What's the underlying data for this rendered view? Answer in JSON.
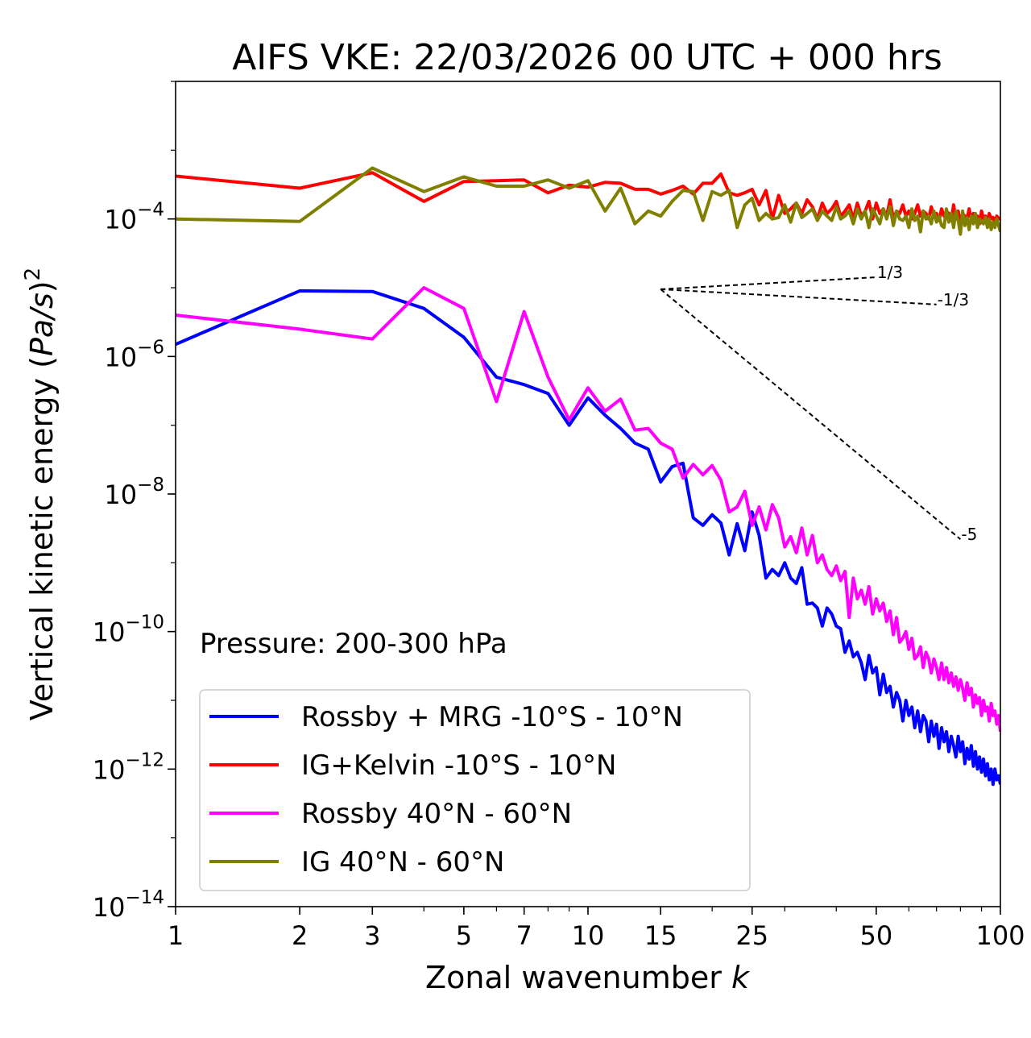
{
  "chart_data": {
    "type": "line",
    "title": "AIFS VKE: 22/03/2026 00 UTC + 000 hrs",
    "xlabel": "Zonal wavenumber k",
    "xlabel_text": "Zonal wavenumber",
    "xlabel_var": "k",
    "ylabel": "Vertical kinetic energy (Pa/s)^2",
    "ylabel_text": "Vertical kinetic energy (",
    "ylabel_var": "Pa/s",
    "ylabel_close": ")",
    "ylabel_exp": "2",
    "xscale": "log",
    "yscale": "log",
    "xlim": [
      1,
      100
    ],
    "ylim": [
      1e-14,
      0.01
    ],
    "xticks": [
      1,
      2,
      3,
      5,
      7,
      10,
      15,
      25,
      50,
      100
    ],
    "xtick_labels": [
      "1",
      "2",
      "3",
      "5",
      "7",
      "10",
      "15",
      "25",
      "50",
      "100"
    ],
    "yticks": [
      1e-14,
      1e-12,
      1e-10,
      1e-08,
      1e-06,
      0.0001
    ],
    "ytick_base": "10",
    "ytick_exps": [
      "−14",
      "−12",
      "−10",
      "−8",
      "−6",
      "−4"
    ],
    "annotation": "Pressure: 200-300 hPa",
    "legend_position": "lower-left",
    "series": [
      {
        "name": "Rossby + MRG -10°S - 10°N",
        "color": "#0000ff",
        "x": [
          1,
          2,
          3,
          4,
          5,
          6,
          7,
          8,
          9,
          10,
          11,
          12,
          13,
          14,
          15,
          16,
          17,
          18,
          19,
          20,
          21,
          22,
          23,
          24,
          25,
          26,
          27,
          28,
          29,
          30,
          31,
          32,
          33,
          34,
          35,
          36,
          37,
          38,
          39,
          40,
          41,
          42,
          43,
          44,
          45,
          46,
          47,
          48,
          49,
          50,
          51,
          52,
          53,
          54,
          55,
          56,
          57,
          58,
          59,
          60,
          61,
          62,
          63,
          64,
          65,
          66,
          67,
          68,
          69,
          70,
          71,
          72,
          73,
          74,
          75,
          76,
          77,
          78,
          79,
          80,
          81,
          82,
          83,
          84,
          85,
          86,
          87,
          88,
          89,
          90,
          91,
          92,
          93,
          94,
          95,
          96,
          97,
          98,
          99,
          100
        ],
        "y": [
          1.5e-06,
          9e-06,
          8.8e-06,
          5e-06,
          1.9e-06,
          5e-07,
          3.9e-07,
          2.9e-07,
          1e-07,
          2.5e-07,
          1.4e-07,
          9e-08,
          5.5e-08,
          4.5e-08,
          1.5e-08,
          2.5e-08,
          2.8e-08,
          4.5e-09,
          3.5e-09,
          5e-09,
          3.8e-09,
          1.3e-09,
          3.7e-09,
          1.5e-09,
          5.5e-09,
          2.5e-09,
          6e-10,
          8e-10,
          6.5e-10,
          1e-09,
          6e-10,
          5e-10,
          8.5e-10,
          2.5e-10,
          2.6e-10,
          2.2e-10,
          1.2e-10,
          2.2e-10,
          1.8e-10,
          1.2e-10,
          1.1e-10,
          5e-11,
          7.3e-11,
          4.3e-11,
          5e-11,
          3.5e-11,
          2e-11,
          4.5e-11,
          2.5e-11,
          3e-11,
          1.2e-11,
          2.4e-11,
          1.3e-11,
          1.6e-11,
          8e-12,
          1.3e-11,
          1e-11,
          5e-12,
          1e-11,
          6e-12,
          8e-12,
          4e-12,
          7e-12,
          3.5e-12,
          6e-12,
          5e-12,
          2.5e-12,
          5e-12,
          3e-12,
          4.5e-12,
          2e-12,
          4e-12,
          2.5e-12,
          3.5e-12,
          1.8e-12,
          3e-12,
          2.2e-12,
          1.5e-12,
          3e-12,
          1.8e-12,
          2.5e-12,
          1.2e-12,
          2e-12,
          1.4e-12,
          2.2e-12,
          1.1e-12,
          1.8e-12,
          1e-12,
          1.5e-12,
          9e-13,
          1.4e-12,
          8e-13,
          1.2e-12,
          7e-13,
          1e-12,
          6e-13,
          1e-12,
          7e-13,
          8e-13,
          6e-13
        ]
      },
      {
        "name": "IG+Kelvin -10°S - 10°N",
        "color": "#ff0000",
        "x": [
          1,
          2,
          3,
          4,
          5,
          6,
          7,
          8,
          9,
          10,
          11,
          12,
          13,
          14,
          15,
          16,
          17,
          18,
          19,
          20,
          21,
          22,
          23,
          24,
          25,
          26,
          27,
          28,
          29,
          30,
          31,
          32,
          33,
          34,
          35,
          36,
          37,
          38,
          39,
          40,
          41,
          42,
          43,
          44,
          45,
          46,
          47,
          48,
          49,
          50,
          51,
          52,
          53,
          54,
          55,
          56,
          57,
          58,
          59,
          60,
          61,
          62,
          63,
          64,
          65,
          66,
          67,
          68,
          69,
          70,
          71,
          72,
          73,
          74,
          75,
          76,
          77,
          78,
          79,
          80,
          81,
          82,
          83,
          84,
          85,
          86,
          87,
          88,
          89,
          90,
          91,
          92,
          93,
          94,
          95,
          96,
          97,
          98,
          99,
          100
        ],
        "y": [
          0.00042,
          0.00028,
          0.00047,
          0.00018,
          0.00035,
          0.00036,
          0.00037,
          0.00024,
          0.00031,
          0.00029,
          0.00034,
          0.00033,
          0.00027,
          0.00027,
          0.00023,
          0.00026,
          0.0003,
          0.00023,
          0.00033,
          0.00033,
          0.00045,
          0.00024,
          0.00022,
          0.00024,
          0.00027,
          0.00016,
          0.00026,
          0.0001,
          0.00022,
          0.00012,
          0.00014,
          0.00017,
          0.00012,
          0.00019,
          0.00015,
          0.0001,
          0.00017,
          0.00012,
          0.00014,
          0.00018,
          0.00011,
          0.00013,
          0.00016,
          0.0001,
          0.00017,
          0.00011,
          0.00013,
          0.00018,
          0.0001,
          0.00017,
          0.00012,
          0.00014,
          0.00011,
          0.00019,
          0.0001,
          0.00013,
          0.00012,
          0.00016,
          0.00011,
          0.00013,
          0.0001,
          0.00012,
          0.00016,
          0.00011,
          0.00013,
          0.00012,
          0.0001,
          0.00015,
          0.00011,
          0.00012,
          9.5e-05,
          0.00014,
          0.00011,
          0.00013,
          0.00012,
          9.5e-05,
          0.00016,
          0.0001,
          0.00013,
          8.5e-05,
          0.00012,
          0.00011,
          0.0001,
          0.00014,
          9.5e-05,
          0.00012,
          0.0001,
          0.00011,
          8.5e-05,
          0.00013,
          0.0001,
          0.00011,
          9e-05,
          0.00012,
          0.0001,
          0.000105,
          9e-05,
          0.00011,
          0.0001,
          0.000105
        ]
      },
      {
        "name": "Rossby 40°N - 60°N",
        "color": "#ff00ff",
        "x": [
          1,
          2,
          3,
          4,
          5,
          6,
          7,
          8,
          9,
          10,
          11,
          12,
          13,
          14,
          15,
          16,
          17,
          18,
          19,
          20,
          21,
          22,
          23,
          24,
          25,
          26,
          27,
          28,
          29,
          30,
          31,
          32,
          33,
          34,
          35,
          36,
          37,
          38,
          39,
          40,
          41,
          42,
          43,
          44,
          45,
          46,
          47,
          48,
          49,
          50,
          51,
          52,
          53,
          54,
          55,
          56,
          57,
          58,
          59,
          60,
          61,
          62,
          63,
          64,
          65,
          66,
          67,
          68,
          69,
          70,
          71,
          72,
          73,
          74,
          75,
          76,
          77,
          78,
          79,
          80,
          81,
          82,
          83,
          84,
          85,
          86,
          87,
          88,
          89,
          90,
          91,
          92,
          93,
          94,
          95,
          96,
          97,
          98,
          99,
          100
        ],
        "y": [
          4e-06,
          2.5e-06,
          1.8e-06,
          1e-05,
          5e-06,
          2.2e-07,
          4.5e-06,
          5e-07,
          1.2e-07,
          3.5e-07,
          1.6e-07,
          2.4e-07,
          8.5e-08,
          9e-08,
          5.5e-08,
          4.5e-08,
          1.7e-08,
          2.7e-08,
          1.9e-08,
          2.6e-08,
          1.6e-08,
          5.5e-09,
          6.5e-09,
          1.1e-08,
          3.5e-09,
          6.5e-09,
          3e-09,
          7e-09,
          4.5e-09,
          1.7e-09,
          2.4e-09,
          1.4e-09,
          3.2e-09,
          1.3e-09,
          2.5e-09,
          1e-09,
          1.3e-09,
          8e-10,
          6.5e-10,
          9e-10,
          5.5e-10,
          7.5e-10,
          1.6e-10,
          6e-10,
          3e-10,
          4e-10,
          2.5e-10,
          4.5e-10,
          1.8e-10,
          3e-10,
          2e-10,
          2.6e-10,
          1.4e-10,
          2e-10,
          9e-11,
          1.6e-10,
          7e-11,
          8e-11,
          1e-10,
          5.5e-11,
          8e-11,
          4e-11,
          4.5e-11,
          6e-11,
          3e-11,
          5e-11,
          4e-11,
          2.5e-11,
          4e-11,
          3e-11,
          2e-11,
          3.5e-11,
          2e-11,
          3e-11,
          1.8e-11,
          2.5e-11,
          1.6e-11,
          2.2e-11,
          1.4e-11,
          2e-11,
          1.5e-11,
          1e-11,
          1.8e-11,
          1.2e-11,
          1.5e-11,
          8e-12,
          1.2e-11,
          9e-12,
          1.1e-11,
          6e-12,
          1e-11,
          7e-12,
          8e-12,
          5e-12,
          9e-12,
          6e-12,
          7e-12,
          4.5e-12,
          6e-12,
          3.5e-12
        ]
      },
      {
        "name": "IG 40°N - 60°N",
        "color": "#808000",
        "x": [
          1,
          2,
          3,
          4,
          5,
          6,
          7,
          8,
          9,
          10,
          11,
          12,
          13,
          14,
          15,
          16,
          17,
          18,
          19,
          20,
          21,
          22,
          23,
          24,
          25,
          26,
          27,
          28,
          29,
          30,
          31,
          32,
          33,
          34,
          35,
          36,
          37,
          38,
          39,
          40,
          41,
          42,
          43,
          44,
          45,
          46,
          47,
          48,
          49,
          50,
          51,
          52,
          53,
          54,
          55,
          56,
          57,
          58,
          59,
          60,
          61,
          62,
          63,
          64,
          65,
          66,
          67,
          68,
          69,
          70,
          71,
          72,
          73,
          74,
          75,
          76,
          77,
          78,
          79,
          80,
          81,
          82,
          83,
          84,
          85,
          86,
          87,
          88,
          89,
          90,
          91,
          92,
          93,
          94,
          95,
          96,
          97,
          98,
          99,
          100
        ],
        "y": [
          0.0001,
          9.2e-05,
          0.00055,
          0.00025,
          0.00041,
          0.0003,
          0.0003,
          0.00037,
          0.00028,
          0.00036,
          0.00013,
          0.00028,
          8.5e-05,
          0.00013,
          0.00011,
          0.00018,
          0.00026,
          0.00025,
          9.5e-05,
          0.00025,
          0.00022,
          0.00026,
          7.5e-05,
          0.00016,
          0.0002,
          9.5e-05,
          0.00012,
          0.0001,
          0.000105,
          0.00016,
          9e-05,
          0.00017,
          0.000105,
          0.00012,
          0.00014,
          9.5e-05,
          0.00013,
          0.00011,
          9.5e-05,
          0.00015,
          0.0001,
          0.00011,
          0.00013,
          8.5e-05,
          0.00014,
          0.0001,
          0.00013,
          7.5e-05,
          0.00014,
          0.00011,
          8.5e-05,
          0.00014,
          0.0001,
          0.00015,
          8e-05,
          0.00013,
          0.0001,
          9.5e-05,
          0.00011,
          7.5e-05,
          0.00014,
          9.5e-05,
          0.00011,
          6.5e-05,
          0.00013,
          0.0001,
          0.00011,
          8.5e-05,
          0.00013,
          9e-05,
          0.00011,
          8e-05,
          7.5e-05,
          0.00014,
          9e-05,
          0.00012,
          7.5e-05,
          0.00013,
          9.5e-05,
          6e-05,
          0.00013,
          8e-05,
          0.000105,
          7e-05,
          0.00011,
          8.5e-05,
          0.00012,
          7.5e-05,
          0.0001,
          9e-05,
          8.5e-05,
          0.000105,
          7.5e-05,
          0.0001,
          7e-05,
          9e-05,
          7.5e-05,
          0.0001,
          8e-05,
          6.5e-05
        ]
      }
    ],
    "reference_slopes": [
      {
        "label": "1/3",
        "x": [
          15,
          50
        ],
        "y": [
          9.5e-06,
          1.42e-05
        ]
      },
      {
        "label": "-1/3",
        "x": [
          15,
          70
        ],
        "y": [
          9.5e-06,
          5.7e-06
        ]
      },
      {
        "label": "-5",
        "x": [
          15,
          80
        ],
        "y": [
          9.5e-06,
          2.2e-09
        ]
      }
    ]
  }
}
